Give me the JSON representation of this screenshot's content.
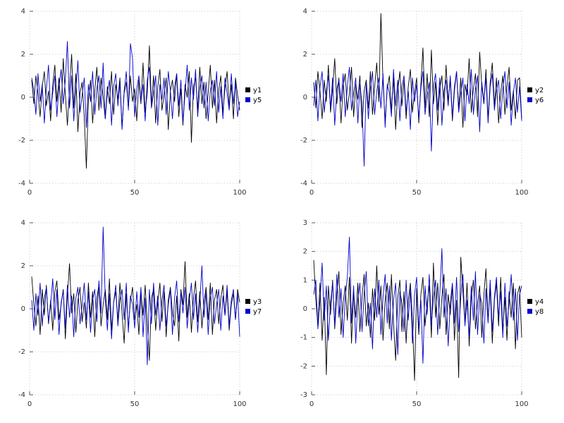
{
  "page_title": "multiplot-noise-series",
  "colors": {
    "series_black": "#000000",
    "series_blue": "#0000cc",
    "grid": "#c8c8c8",
    "tick_text": "#333333",
    "legend_text": "#000000",
    "background": "#ffffff"
  },
  "chart_data": {
    "type": "line",
    "layout": "2x2-multiplot",
    "grid": "dotted",
    "legend_position": "right-center",
    "charts": [
      {
        "name": "plot-top-left",
        "xlim": [
          0,
          100
        ],
        "ylim": [
          -4,
          4
        ],
        "xticks": [
          0,
          50,
          100
        ],
        "yticks": [
          -4,
          -2,
          0,
          2,
          4
        ],
        "series": [
          {
            "name": "y1",
            "color": "#000000",
            "values": [
              0.8,
              -0.3,
              1.0,
              0.2,
              -0.9,
              0.5,
              1.2,
              -0.4,
              0.3,
              -1.1,
              0.6,
              1.5,
              -0.2,
              0.9,
              -0.7,
              1.8,
              0.1,
              -1.3,
              0.4,
              2.0,
              -0.5,
              1.1,
              -1.6,
              0.2,
              0.7,
              -0.9,
              -3.3,
              -0.1,
              0.8,
              -1.2,
              0.3,
              1.4,
              -0.6,
              0.9,
              0.0,
              -1.0,
              0.5,
              -0.3,
              1.2,
              -0.8,
              0.6,
              -0.1,
              0.9,
              -1.4,
              0.2,
              0.7,
              -0.5,
              1.0,
              -0.2,
              0.4,
              -1.1,
              0.8,
              -0.3,
              1.6,
              -0.7,
              0.2,
              2.4,
              -0.4,
              1.0,
              -1.2,
              0.5,
              1.3,
              -0.6,
              0.1,
              0.9,
              -1.5,
              0.3,
              0.8,
              -0.2,
              1.1,
              -0.9,
              0.4,
              -1.3,
              0.6,
              0.0,
              1.2,
              -2.1,
              0.5,
              0.9,
              -0.6,
              1.4,
              -0.3,
              0.7,
              -1.0,
              0.2,
              1.5,
              -0.5,
              0.8,
              -1.2,
              0.3,
              1.0,
              -0.7,
              0.4,
              1.2,
              -0.4,
              0.6,
              -1.0,
              0.9,
              0.1,
              -0.6
            ]
          },
          {
            "name": "y5",
            "color": "#0000cc",
            "values": [
              0.9,
              0.3,
              -0.8,
              1.1,
              -0.2,
              0.6,
              -1.2,
              0.4,
              1.5,
              -0.6,
              0.2,
              1.0,
              -0.9,
              0.5,
              1.3,
              -0.3,
              0.8,
              2.6,
              -0.5,
              1.0,
              -1.1,
              0.3,
              1.7,
              -0.7,
              0.1,
              0.9,
              -1.4,
              0.6,
              -0.2,
              1.2,
              -0.8,
              0.4,
              1.0,
              -0.5,
              1.6,
              -1.0,
              0.2,
              0.8,
              -1.3,
              0.5,
              1.1,
              -0.4,
              0.7,
              -1.5,
              0.3,
              1.2,
              -0.6,
              2.5,
              1.8,
              -0.9,
              0.4,
              1.0,
              -0.2,
              0.6,
              -1.1,
              0.8,
              1.4,
              -0.5,
              0.2,
              1.0,
              -1.3,
              0.6,
              -0.1,
              0.9,
              -0.8,
              1.2,
              0.3,
              -1.0,
              0.5,
              1.1,
              -0.4,
              0.8,
              -1.2,
              0.2,
              1.5,
              -0.6,
              0.9,
              -0.1,
              1.3,
              -0.9,
              0.4,
              1.0,
              -0.5,
              0.7,
              -1.1,
              0.3,
              0.8,
              -0.4,
              1.2,
              -0.7,
              0.5,
              -1.0,
              0.9,
              0.2,
              -0.6,
              1.1,
              -0.3,
              0.7,
              -0.9,
              -0.2
            ]
          }
        ]
      },
      {
        "name": "plot-top-right",
        "xlim": [
          0,
          100
        ],
        "ylim": [
          -4,
          4
        ],
        "xticks": [
          0,
          50,
          100
        ],
        "yticks": [
          -4,
          -2,
          0,
          2,
          4
        ],
        "series": [
          {
            "name": "y2",
            "color": "#000000",
            "values": [
              0.7,
              -0.5,
              1.2,
              0.3,
              -1.0,
              0.8,
              -0.2,
              1.5,
              -0.7,
              0.4,
              1.8,
              -0.3,
              0.9,
              -1.2,
              0.5,
              1.1,
              -0.6,
              0.2,
              1.4,
              -0.9,
              0.6,
              -0.1,
              1.0,
              -1.4,
              0.3,
              0.8,
              -0.5,
              1.2,
              -0.8,
              0.5,
              1.6,
              -0.2,
              3.9,
              0.7,
              -1.1,
              0.4,
              1.0,
              -0.6,
              0.9,
              -1.5,
              0.3,
              1.2,
              -0.4,
              0.8,
              -1.0,
              0.5,
              1.3,
              -0.7,
              0.2,
              0.9,
              -1.2,
              0.6,
              2.3,
              -0.5,
              1.1,
              -0.9,
              2.2,
              -0.3,
              0.7,
              -1.3,
              0.4,
              1.0,
              -0.6,
              1.5,
              -0.2,
              0.8,
              -1.1,
              0.3,
              1.2,
              -0.5,
              0.9,
              -1.4,
              0.6,
              0.1,
              1.8,
              -0.7,
              0.4,
              1.1,
              -0.9,
              2.1,
              0.5,
              -0.3,
              1.3,
              -1.0,
              0.7,
              1.6,
              -0.4,
              0.9,
              -1.2,
              0.2,
              1.0,
              -0.8,
              0.5,
              1.4,
              -0.6,
              0.3,
              -1.0,
              0.8,
              0.9,
              -1.0
            ]
          },
          {
            "name": "y6",
            "color": "#0000cc",
            "values": [
              -0.4,
              0.8,
              -1.1,
              0.5,
              1.2,
              -0.7,
              0.3,
              1.0,
              -0.5,
              0.9,
              -1.3,
              0.4,
              0.8,
              -0.2,
              1.1,
              -0.9,
              0.5,
              1.4,
              -0.6,
              0.2,
              0.9,
              -1.2,
              0.6,
              -0.3,
              -3.2,
              0.7,
              -1.0,
              0.4,
              1.2,
              -0.8,
              0.3,
              0.9,
              -0.5,
              1.1,
              -1.4,
              0.6,
              0.2,
              -0.9,
              1.3,
              -0.4,
              0.8,
              -1.1,
              0.5,
              1.0,
              -0.7,
              0.3,
              -1.5,
              0.9,
              -0.2,
              0.6,
              -1.0,
              0.4,
              1.2,
              -0.8,
              0.1,
              0.7,
              -2.5,
              0.5,
              1.1,
              -0.6,
              0.9,
              -1.3,
              0.3,
              0.8,
              -0.4,
              1.0,
              -0.9,
              0.5,
              1.2,
              -0.7,
              0.2,
              0.9,
              -1.1,
              0.6,
              -0.3,
              1.3,
              -0.8,
              0.4,
              1.0,
              -1.6,
              0.7,
              -0.2,
              0.9,
              -1.2,
              0.5,
              1.1,
              -0.6,
              0.3,
              0.8,
              -1.0,
              0.4,
              1.2,
              -0.5,
              0.7,
              -1.3,
              0.2,
              0.9,
              -0.7,
              0.5,
              -1.1
            ]
          }
        ]
      },
      {
        "name": "plot-bottom-left",
        "xlim": [
          0,
          100
        ],
        "ylim": [
          -4,
          4
        ],
        "xticks": [
          0,
          50,
          100
        ],
        "yticks": [
          -4,
          -2,
          0,
          2,
          4
        ],
        "series": [
          {
            "name": "y3",
            "color": "#000000",
            "values": [
              1.5,
              0.2,
              -0.8,
              0.6,
              -1.2,
              0.9,
              -0.3,
              1.1,
              -0.7,
              0.4,
              -1.0,
              0.8,
              1.3,
              -0.5,
              0.2,
              0.9,
              -1.4,
              0.6,
              2.1,
              -0.2,
              0.7,
              -1.1,
              0.4,
              1.0,
              -0.6,
              0.3,
              -0.9,
              1.2,
              -0.4,
              0.8,
              -1.3,
              0.5,
              1.1,
              -0.8,
              0.2,
              0.9,
              -0.5,
              1.4,
              -1.0,
              0.3,
              0.8,
              -0.6,
              1.2,
              -0.2,
              -1.6,
              0.7,
              -0.9,
              0.4,
              1.0,
              -0.5,
              0.2,
              -1.2,
              0.8,
              -0.3,
              1.1,
              -0.7,
              -2.4,
              0.5,
              0.9,
              -1.0,
              0.3,
              1.2,
              -0.6,
              0.8,
              -1.3,
              0.4,
              1.0,
              -0.2,
              -0.8,
              0.6,
              -1.5,
              0.9,
              0.2,
              2.2,
              -0.4,
              0.7,
              -1.1,
              0.5,
              1.3,
              -0.6,
              0.8,
              -0.9,
              0.3,
              1.0,
              -0.5,
              1.2,
              -1.2,
              0.4,
              0.9,
              -0.7,
              0.5,
              1.1,
              -0.3,
              0.8,
              -1.0,
              0.2,
              0.7,
              -0.5,
              0.9,
              0.3
            ]
          },
          {
            "name": "y7",
            "color": "#0000cc",
            "values": [
              0.4,
              -1.0,
              0.7,
              -0.3,
              1.2,
              -0.8,
              0.5,
              1.0,
              -0.6,
              0.2,
              1.4,
              -0.5,
              0.9,
              -1.2,
              0.3,
              0.8,
              -0.9,
              1.1,
              -0.4,
              0.6,
              -1.3,
              0.5,
              1.0,
              -0.7,
              0.2,
              1.2,
              -0.5,
              0.8,
              -1.1,
              0.4,
              0.9,
              -0.6,
              1.3,
              -0.2,
              3.8,
              0.5,
              -1.0,
              0.7,
              -1.4,
              0.3,
              1.1,
              -0.8,
              0.4,
              0.9,
              -0.5,
              1.2,
              -1.1,
              0.6,
              0.2,
              -0.9,
              0.8,
              -0.4,
              1.0,
              -1.3,
              0.5,
              -2.6,
              0.9,
              -0.7,
              1.2,
              -0.3,
              0.6,
              -1.0,
              0.4,
              1.1,
              -0.8,
              0.2,
              0.9,
              -1.2,
              0.5,
              1.3,
              -0.6,
              0.8,
              -0.2,
              1.0,
              -0.9,
              0.4,
              1.2,
              -0.5,
              0.7,
              -1.1,
              0.3,
              2.0,
              -0.4,
              0.8,
              -1.2,
              0.5,
              1.0,
              -0.7,
              0.2,
              0.9,
              -1.0,
              0.6,
              -0.3,
              1.1,
              -0.8,
              0.4,
              0.9,
              -0.5,
              0.7,
              -1.3
            ]
          }
        ]
      },
      {
        "name": "plot-bottom-right",
        "xlim": [
          0,
          100
        ],
        "ylim": [
          -3,
          3
        ],
        "xticks": [
          0,
          50,
          100
        ],
        "yticks": [
          -3,
          -2,
          -1,
          0,
          1,
          2,
          3
        ],
        "series": [
          {
            "name": "y4",
            "color": "#000000",
            "values": [
              1.7,
              0.3,
              -0.6,
              0.9,
              -1.1,
              0.4,
              -2.3,
              0.8,
              -0.2,
              1.0,
              -0.7,
              0.5,
              1.3,
              -0.9,
              0.2,
              0.8,
              -0.4,
              1.1,
              -1.2,
              0.6,
              -0.3,
              0.9,
              -0.8,
              0.4,
              1.2,
              -0.6,
              0.2,
              -1.0,
              0.7,
              -0.4,
              1.5,
              -0.2,
              0.8,
              -1.1,
              0.3,
              0.9,
              -0.7,
              1.2,
              -0.5,
              -1.8,
              0.4,
              1.0,
              -0.8,
              0.6,
              -1.2,
              0.3,
              0.9,
              -0.4,
              -2.5,
              0.7,
              -0.9,
              0.5,
              1.1,
              -0.6,
              0.2,
              0.8,
              -1.0,
              1.6,
              -0.3,
              0.9,
              -0.7,
              0.4,
              1.2,
              -0.9,
              0.5,
              -0.2,
              0.8,
              -1.1,
              0.3,
              -2.4,
              1.8,
              0.6,
              -0.5,
              0.9,
              -1.3,
              0.4,
              1.0,
              -0.7,
              0.2,
              0.8,
              -1.0,
              0.5,
              1.4,
              -0.4,
              0.7,
              -1.2,
              0.3,
              0.9,
              -0.6,
              1.1,
              -0.8,
              0.4,
              -1.1,
              0.6,
              -0.3,
              0.9,
              -1.4,
              0.5,
              0.8,
              -1.0
            ]
          },
          {
            "name": "y8",
            "color": "#0000cc",
            "values": [
              0.5,
              1.0,
              -0.7,
              0.3,
              1.6,
              -0.4,
              0.8,
              -1.1,
              0.2,
              0.9,
              -0.6,
              1.2,
              -0.3,
              0.7,
              -1.0,
              0.4,
              1.1,
              2.5,
              -0.5,
              0.8,
              -1.2,
              0.3,
              0.9,
              -0.8,
              0.5,
              1.3,
              -0.6,
              0.2,
              -1.4,
              0.7,
              -0.3,
              1.0,
              -0.9,
              0.4,
              1.2,
              -0.5,
              0.8,
              -1.1,
              0.3,
              0.9,
              -1.6,
              0.6,
              0.2,
              -0.8,
              1.0,
              -0.4,
              0.7,
              -1.2,
              0.5,
              1.1,
              -0.7,
              0.3,
              -1.9,
              0.8,
              -0.2,
              1.2,
              -0.6,
              0.4,
              1.0,
              -0.9,
              0.5,
              2.1,
              -0.3,
              0.7,
              -1.3,
              0.2,
              0.9,
              -0.5,
              1.1,
              -0.8,
              0.4,
              1.2,
              -0.6,
              0.3,
              -1.0,
              0.8,
              -0.4,
              1.3,
              -0.9,
              0.5,
              0.2,
              -1.2,
              0.7,
              -0.5,
              1.0,
              -0.8,
              0.4,
              1.1,
              -0.3,
              0.6,
              -1.0,
              0.9,
              -0.6,
              0.2,
              1.2,
              -0.4,
              0.7,
              -1.1,
              0.5,
              0.8
            ]
          }
        ]
      }
    ]
  }
}
